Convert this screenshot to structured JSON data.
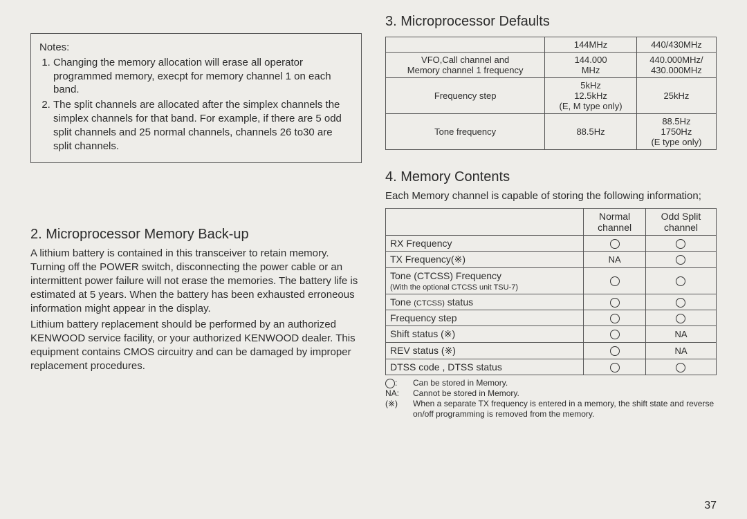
{
  "page_number": "37",
  "left": {
    "notes_title": "Notes:",
    "notes": [
      "Changing the memory allocation will erase all operator programmed memory, execpt for memory channel 1 on each band.",
      "The split channels are allocated after the simplex channels the simplex channels for that band. For example, if there are 5 odd split channels and 25 normal channels, channels 26 to30 are split channels."
    ],
    "heading2": "2. Microprocessor Memory Back-up",
    "para1": "A lithium battery is contained in this transceiver to retain memory. Turning off the POWER switch, disconnecting the power cable or an intermittent power failure will not erase the memories. The battery life is estimated at 5 years. When the battery has been exhausted erroneous information might appear in the display.",
    "para2": "Lithium battery replacement should be performed by an authorized KENWOOD service facility, or your authorized KENWOOD dealer. This equipment contains CMOS circuitry and can be damaged by improper replacement procedures."
  },
  "right": {
    "heading3": "3. Microprocessor Defaults",
    "defaults_table": {
      "headers": [
        "",
        "144MHz",
        "440/430MHz"
      ],
      "rows": [
        {
          "label_line1": "VFO,Call channel and",
          "label_line2": "Memory channel 1 frequency",
          "c1_line1": "144.000",
          "c1_line2": "MHz",
          "c2_line1": "440.000MHz/",
          "c2_line2": "430.000MHz"
        },
        {
          "label": "Frequency step",
          "c1_line1": "5kHz",
          "c1_line2": "12.5kHz",
          "c1_line3": "(E, M type only)",
          "c2": "25kHz"
        },
        {
          "label": "Tone frequency",
          "c1": "88.5Hz",
          "c2_line1": "88.5Hz",
          "c2_line2": "1750Hz",
          "c2_line3": "(E type only)"
        }
      ]
    },
    "heading4": "4. Memory Contents",
    "memory_intro": "Each Memory channel is capable of storing the following information;",
    "contents_table": {
      "col1": "Normal channel",
      "col2": "Odd Split channel",
      "rows": [
        {
          "label": "RX Frequency",
          "a": "O",
          "b": "O"
        },
        {
          "label": "TX Frequency(※)",
          "a": "NA",
          "b": "O"
        },
        {
          "label_main": "Tone (CTCSS) Frequency",
          "label_sub": "(With the optional CTCSS unit TSU-7)",
          "a": "O",
          "b": "O"
        },
        {
          "label": "Tone (CTCSS) status",
          "a": "O",
          "b": "O"
        },
        {
          "label": "Frequency step",
          "a": "O",
          "b": "O"
        },
        {
          "label": "Shift status (※)",
          "a": "O",
          "b": "NA"
        },
        {
          "label": "REV status (※)",
          "a": "O",
          "b": "NA"
        },
        {
          "label": "DTSS code , DTSS status",
          "a": "O",
          "b": "O"
        }
      ]
    },
    "legend": {
      "o": "Can be stored in Memory.",
      "na": "Cannot be stored in Memory.",
      "star": "When a separate TX frequency is entered in a memory, the shift state and reverse on/off programming is removed from the memory."
    }
  }
}
